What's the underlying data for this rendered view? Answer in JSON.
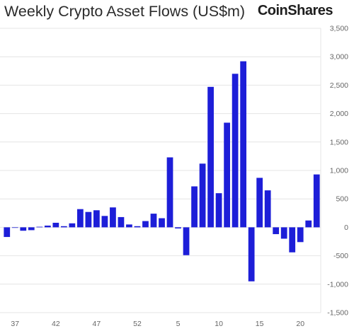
{
  "chart_data": {
    "type": "bar",
    "title": "Weekly Crypto Asset Flows (US$m)",
    "xlabel": "",
    "ylabel": "",
    "ylim": [
      -1500,
      3500
    ],
    "yticks": [
      3500,
      3000,
      2500,
      2000,
      1500,
      1000,
      500,
      0,
      -500,
      -1000,
      -1500
    ],
    "ytick_labels": [
      "3,500",
      "3,000",
      "2,500",
      "2,000",
      "1,500",
      "1,000",
      "500",
      "0",
      "-500",
      "-1,000",
      "-1,500"
    ],
    "x_tick_labels": [
      "37",
      "42",
      "47",
      "52",
      "5",
      "10",
      "15",
      "20"
    ],
    "x_tick_indices": [
      1,
      6,
      11,
      16,
      21,
      26,
      31,
      36
    ],
    "grid": true,
    "legend": "none",
    "bar_color": "#1d1ed8",
    "values": [
      -170,
      0,
      -60,
      -50,
      10,
      30,
      80,
      20,
      70,
      320,
      270,
      300,
      200,
      350,
      180,
      50,
      20,
      110,
      240,
      160,
      1230,
      -20,
      -490,
      720,
      1120,
      2470,
      600,
      1840,
      2700,
      2920,
      -950,
      870,
      650,
      -120,
      -200,
      -440,
      -260,
      120,
      930
    ]
  },
  "brand": {
    "logo_text": "CoinShares"
  }
}
